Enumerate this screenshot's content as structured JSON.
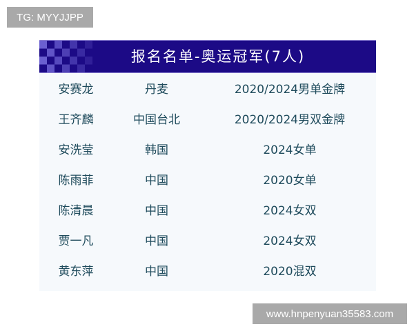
{
  "watermarks": {
    "top_left": "TG: MYYJJPP",
    "bottom_right": "www.hnpenyuan35583.com"
  },
  "colors": {
    "header_bg": "#1c0a86",
    "text": "#1f4b5c"
  },
  "table": {
    "title": "报名名单-奥运冠军(7人)",
    "rows": [
      {
        "name": "安赛龙",
        "region": "丹麦",
        "medal": "2020/2024男单金牌"
      },
      {
        "name": "王齐麟",
        "region": "中国台北",
        "medal": "2020/2024男双金牌"
      },
      {
        "name": "安洗莹",
        "region": "韩国",
        "medal": "2024女单"
      },
      {
        "name": "陈雨菲",
        "region": "中国",
        "medal": "2020女单"
      },
      {
        "name": "陈清晨",
        "region": "中国",
        "medal": "2024女双"
      },
      {
        "name": "贾一凡",
        "region": "中国",
        "medal": "2024女双"
      },
      {
        "name": "黄东萍",
        "region": "中国",
        "medal": "2020混双"
      }
    ]
  }
}
